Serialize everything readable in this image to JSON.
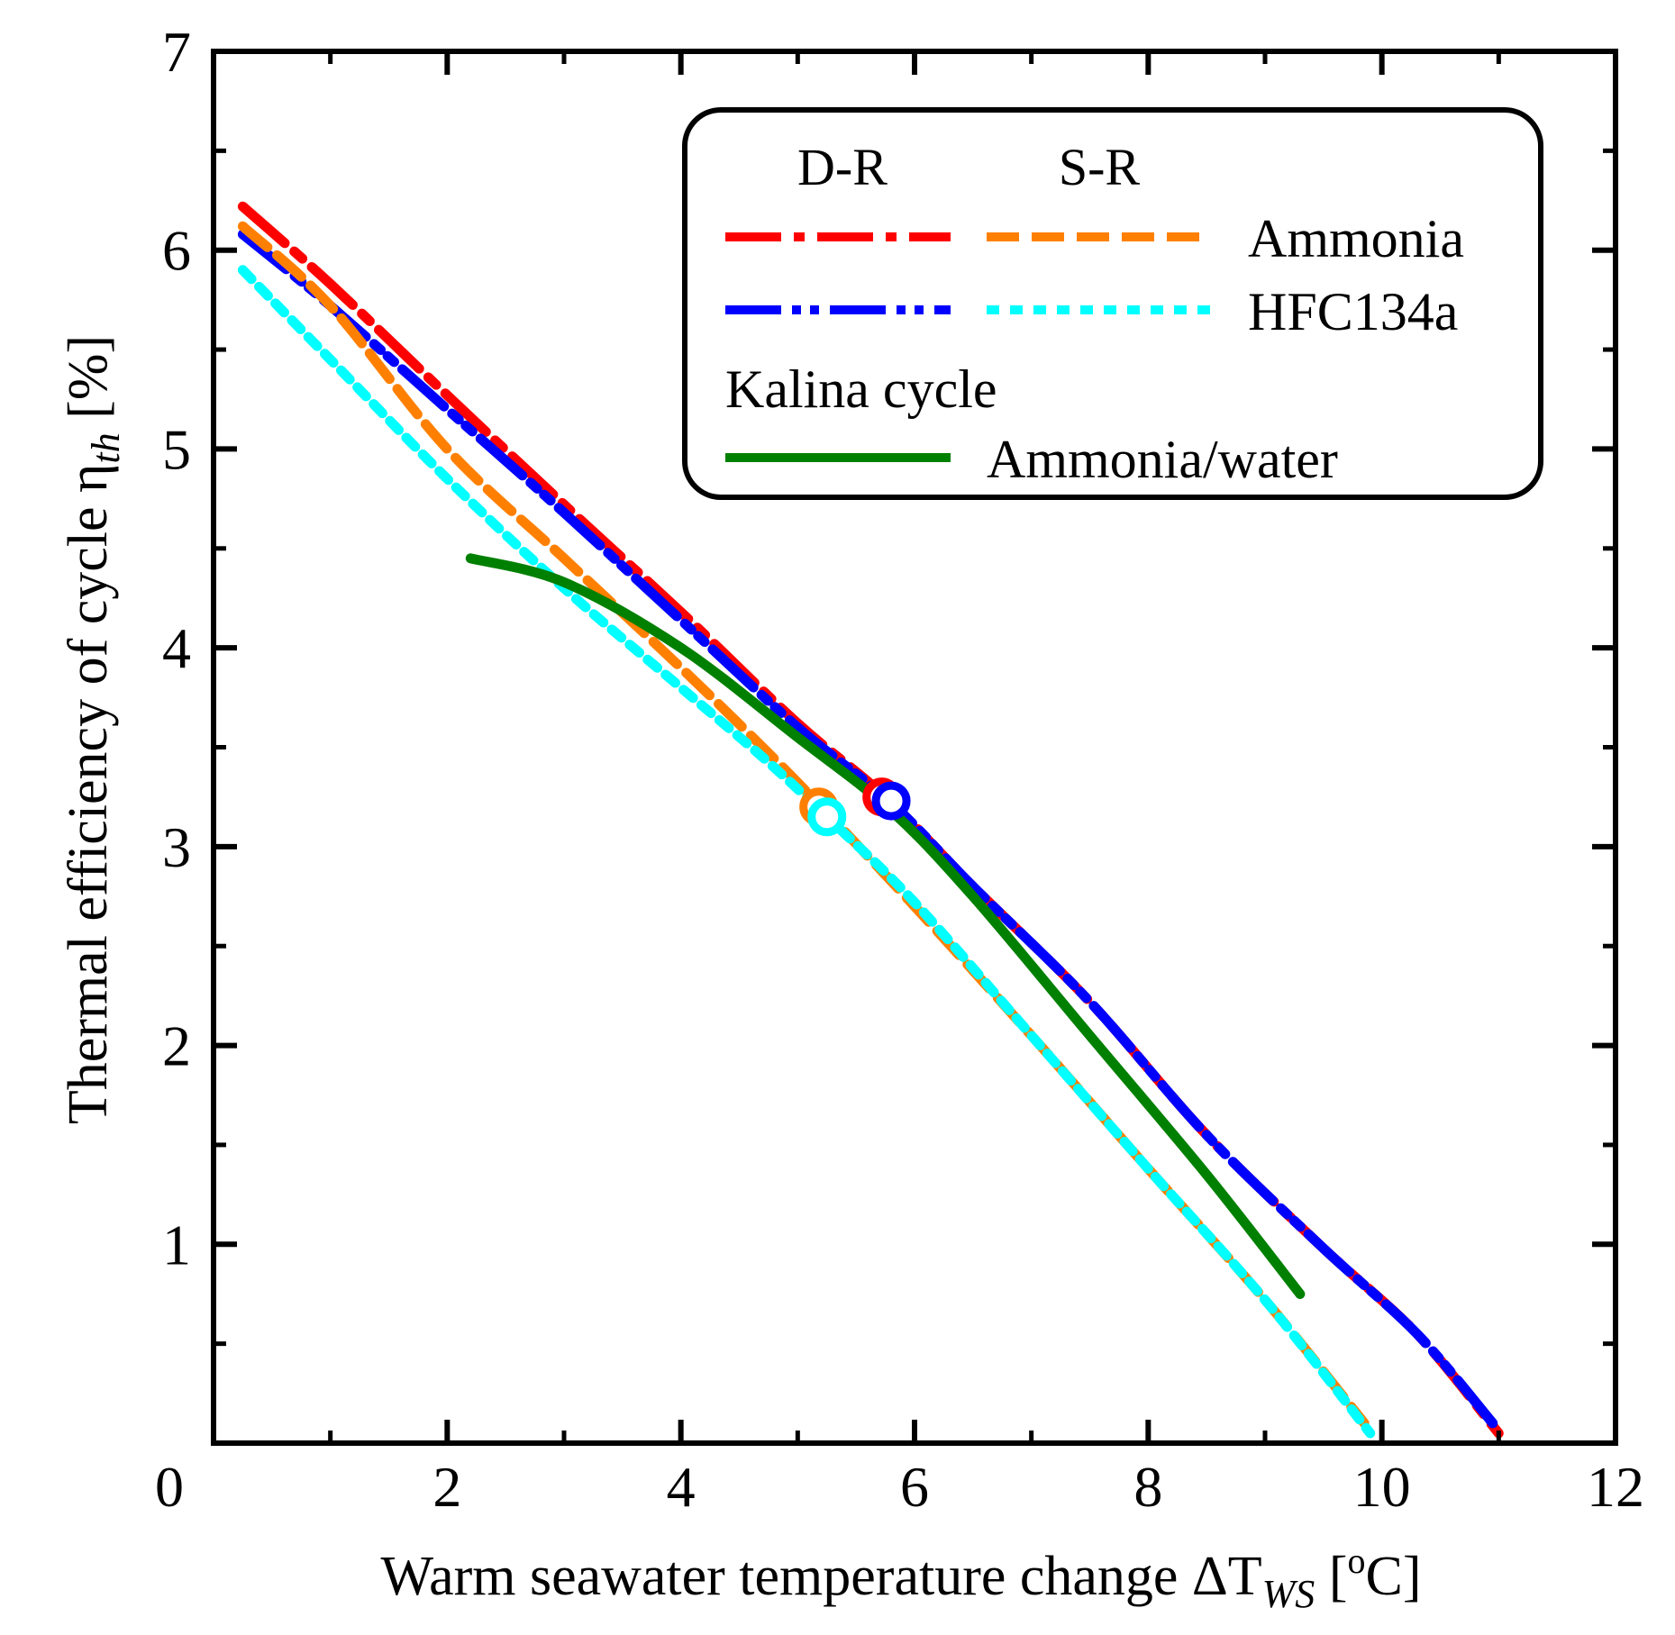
{
  "chart_data": {
    "type": "line",
    "xlabel": "Warm seawater temperature change ΔT",
    "xlabel_sub": "WS",
    "xlabel_unit_open": " [",
    "xlabel_unit_sup": "o",
    "xlabel_unit_close": "C]",
    "ylabel": "Thermal efficiency of cycle η",
    "ylabel_sub": "th",
    "ylabel_unit": " [%]",
    "xlim": [
      0,
      12
    ],
    "ylim": [
      0,
      7
    ],
    "xticks": [
      0,
      2,
      4,
      6,
      8,
      10,
      12
    ],
    "yticks": [
      1,
      2,
      3,
      4,
      5,
      6,
      7
    ],
    "origin_label": "0",
    "legend": {
      "placement": "top-right",
      "header_dr": "D-R",
      "header_sr": "S-R",
      "row_ammonia": "Ammonia",
      "row_hfc": "HFC134a",
      "kalina_title": "Kalina cycle",
      "row_kalina": "Ammonia/water"
    },
    "series": [
      {
        "name": "Ammonia D-R",
        "color": "#ff0000",
        "style": "dashdot-long",
        "x": [
          0.25,
          1,
          2,
          3,
          4,
          5,
          5.75,
          6.5,
          7.5,
          8.5,
          9.5,
          10.3,
          11.0
        ],
        "y": [
          6.22,
          5.83,
          5.27,
          4.72,
          4.18,
          3.62,
          3.25,
          2.8,
          2.22,
          1.55,
          0.98,
          0.55,
          0.05
        ]
      },
      {
        "name": "HFC134a D-R",
        "color": "#0000ff",
        "style": "dashdotdot",
        "x": [
          0.25,
          1,
          2,
          3,
          4,
          5,
          5.8,
          6.5,
          7.5,
          8.5,
          9.5,
          10.3,
          10.95
        ],
        "y": [
          6.08,
          5.72,
          5.2,
          4.68,
          4.14,
          3.6,
          3.22,
          2.8,
          2.22,
          1.55,
          0.98,
          0.55,
          0.1
        ]
      },
      {
        "name": "Ammonia S-R",
        "color": "#ff8000",
        "style": "dashed",
        "x": [
          0.25,
          1,
          2,
          3,
          4,
          4.7,
          5.2,
          6,
          7,
          8,
          9,
          9.85
        ],
        "y": [
          6.12,
          5.72,
          5.0,
          4.45,
          3.9,
          3.5,
          3.2,
          2.7,
          2.05,
          1.38,
          0.72,
          0.1
        ]
      },
      {
        "name": "HFC134a S-R",
        "color": "#00ffff",
        "style": "dotted",
        "x": [
          0.25,
          1,
          2,
          3,
          4,
          4.7,
          5.25,
          6,
          7,
          8,
          9,
          9.9
        ],
        "y": [
          5.9,
          5.45,
          4.85,
          4.3,
          3.8,
          3.45,
          3.15,
          2.72,
          2.05,
          1.38,
          0.72,
          0.05
        ]
      },
      {
        "name": "Ammonia/water Kalina",
        "color": "#008000",
        "style": "solid",
        "x": [
          2.2,
          3,
          4,
          5,
          5.8,
          6.5,
          7.5,
          8.5,
          9.3
        ],
        "y": [
          4.45,
          4.33,
          4.0,
          3.55,
          3.18,
          2.75,
          2.05,
          1.35,
          0.75
        ]
      }
    ],
    "markers": [
      {
        "series": "Ammonia D-R",
        "x": 5.72,
        "y": 3.25,
        "color": "#ff0000"
      },
      {
        "series": "HFC134a D-R",
        "x": 5.8,
        "y": 3.23,
        "color": "#0000ff"
      },
      {
        "series": "Ammonia S-R",
        "x": 5.18,
        "y": 3.2,
        "color": "#ff8000"
      },
      {
        "series": "HFC134a S-R",
        "x": 5.25,
        "y": 3.15,
        "color": "#00ffff"
      }
    ]
  }
}
